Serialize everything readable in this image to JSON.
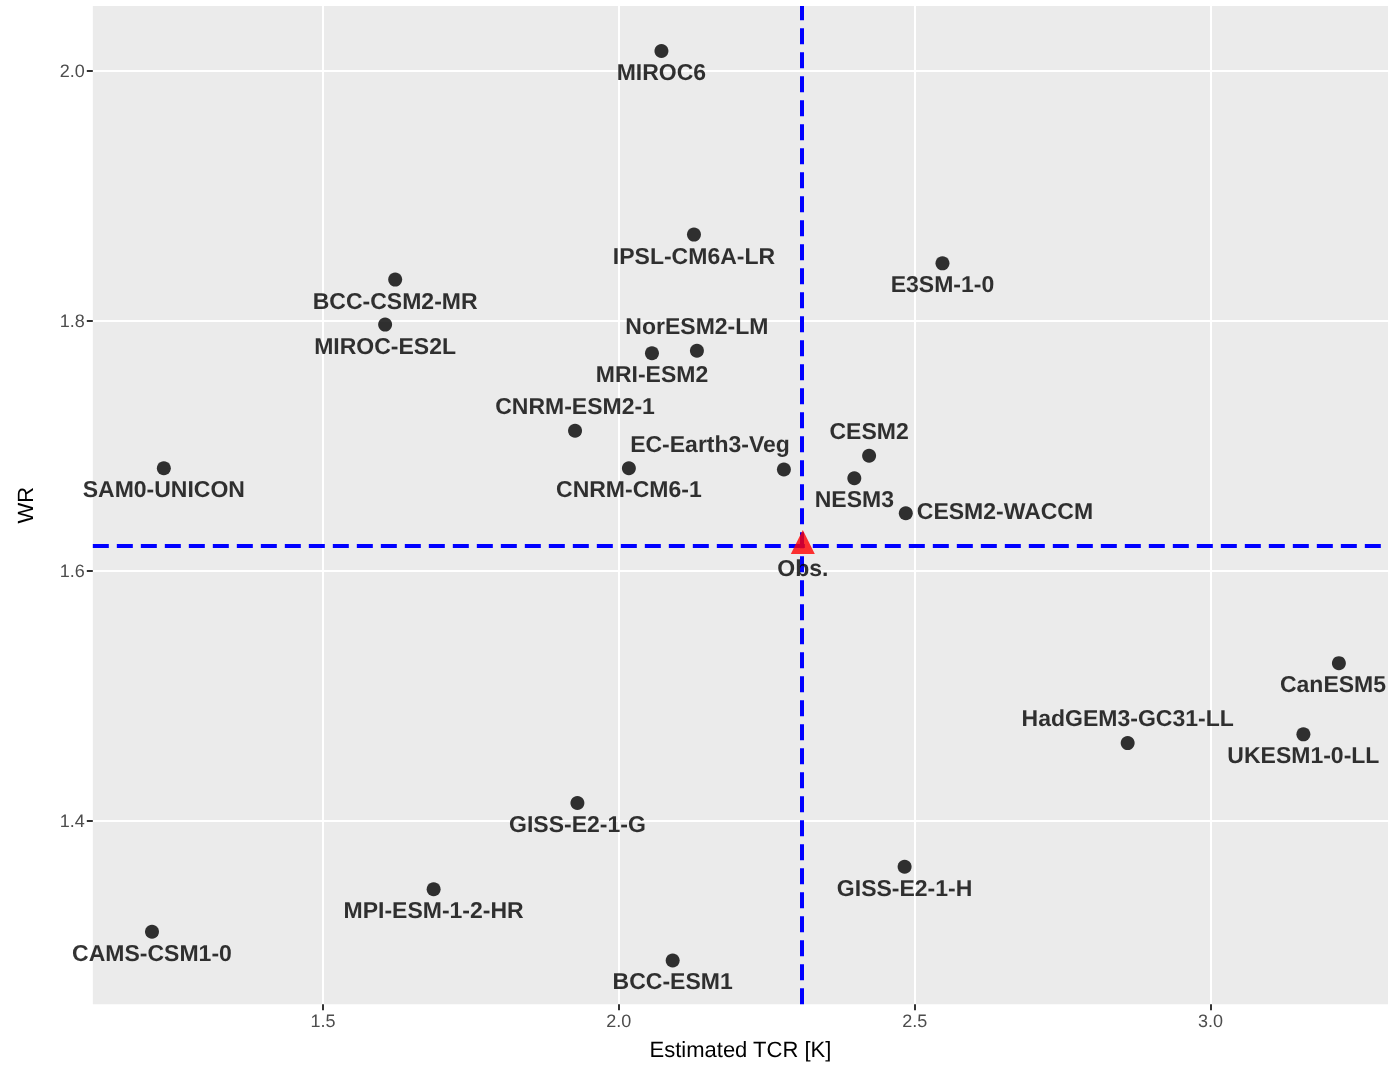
{
  "chart_data": {
    "type": "scatter",
    "xlabel": "Estimated TCR [K]",
    "ylabel": "WR",
    "xlim": [
      1.111,
      3.3
    ],
    "xticks": [
      1.5,
      {
        "value": 2,
        "label": "2.0"
      },
      2.5,
      {
        "value": 3,
        "label": "3.0"
      }
    ],
    "ylim": [
      1.253,
      2.052
    ],
    "yticks": [
      1.4,
      1.6,
      1.8,
      {
        "value": 2,
        "label": "2.0"
      }
    ],
    "grid": true,
    "legend": false,
    "marker": "circle",
    "ref_lines": [
      {
        "axis": "x",
        "value": 2.311,
        "color": "#0000ff",
        "line_style": "dashed"
      },
      {
        "axis": "y",
        "value": 1.623,
        "color": "#0000ff",
        "line_style": "dashed"
      }
    ],
    "series": [
      {
        "name": "MIROC6",
        "color": "#000000",
        "x": [
          2.072
        ],
        "values": [
          2.016
        ]
      },
      {
        "name": "IPSL-CM6A-LR",
        "color": "#000000",
        "x": [
          2.127
        ],
        "values": [
          1.869
        ]
      },
      {
        "name": "BCC-CSM2-MR",
        "color": "#000000",
        "x": [
          1.622
        ],
        "values": [
          1.833
        ]
      },
      {
        "name": "MIROC-ES2L",
        "color": "#000000",
        "x": [
          1.605
        ],
        "values": [
          1.797
        ]
      },
      {
        "name": "MRI-ESM2",
        "color": "#000000",
        "x": [
          2.056
        ],
        "values": [
          1.774
        ]
      },
      {
        "name": "NorESM2-LM",
        "color": "#000000",
        "x": [
          2.132
        ],
        "values": [
          1.776
        ]
      },
      {
        "name": "CNRM-ESM2-1",
        "color": "#000000",
        "x": [
          1.926
        ],
        "values": [
          1.712
        ]
      },
      {
        "name": "SAM0-UNICON",
        "color": "#000000",
        "x": [
          1.231
        ],
        "values": [
          1.682
        ]
      },
      {
        "name": "CNRM-CM6-1",
        "color": "#000000",
        "x": [
          2.017
        ],
        "values": [
          1.682
        ]
      },
      {
        "name": "E3SM-1-0",
        "color": "#000000",
        "x": [
          2.547
        ],
        "values": [
          1.846
        ]
      },
      {
        "name": "EC-Earth3-Veg",
        "color": "#000000",
        "x": [
          2.279
        ],
        "values": [
          1.681
        ]
      },
      {
        "name": "CESM2",
        "color": "#000000",
        "x": [
          2.423
        ],
        "values": [
          1.692
        ]
      },
      {
        "name": "NESM3",
        "color": "#000000",
        "x": [
          2.398
        ],
        "values": [
          1.674
        ]
      },
      {
        "name": "CESM2-WACCM",
        "color": "#000000",
        "x": [
          2.485
        ],
        "values": [
          1.646
        ]
      },
      {
        "name": "CanESM5",
        "color": "#000000",
        "x": [
          3.217
        ],
        "values": [
          1.526
        ]
      },
      {
        "name": "UKESM1-0-LL",
        "color": "#000000",
        "x": [
          3.157
        ],
        "values": [
          1.469
        ]
      },
      {
        "name": "HadGEM3-GC31-LL",
        "color": "#000000",
        "x": [
          2.86
        ],
        "values": [
          1.462
        ]
      },
      {
        "name": "GISS-E2-1-H",
        "color": "#000000",
        "x": [
          2.483
        ],
        "values": [
          1.363
        ]
      },
      {
        "name": "GISS-E2-1-G",
        "color": "#000000",
        "x": [
          1.93
        ],
        "values": [
          1.414
        ]
      },
      {
        "name": "MPI-ESM-1-2-HR",
        "color": "#000000",
        "x": [
          1.687
        ],
        "values": [
          1.345
        ]
      },
      {
        "name": "CAMS-CSM1-0",
        "color": "#000000",
        "x": [
          1.211
        ],
        "values": [
          1.311
        ]
      },
      {
        "name": "BCC-ESM1",
        "color": "#000000",
        "x": [
          2.091
        ],
        "values": [
          1.288
        ]
      },
      {
        "name": "Obs.",
        "color": "#ff0000",
        "marker": "triangle",
        "x": [
          2.311
        ],
        "values": [
          1.623
        ]
      }
    ]
  }
}
